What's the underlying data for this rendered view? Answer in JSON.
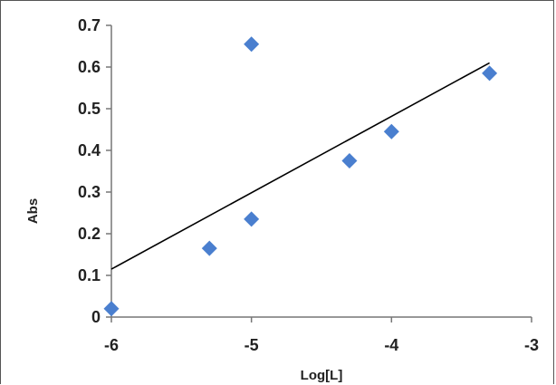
{
  "chart_data": {
    "type": "scatter",
    "title": "",
    "xlabel": "Log[L]",
    "ylabel": "Abs",
    "xlim": [
      -6,
      -3
    ],
    "ylim": [
      0,
      0.7
    ],
    "x_ticks": [
      "-6",
      "-5",
      "-4",
      "-3"
    ],
    "y_ticks": [
      "0",
      "0.1",
      "0.2",
      "0.3",
      "0.4",
      "0.5",
      "0.6",
      "0.7"
    ],
    "grid": false,
    "legend": "none",
    "series": [
      {
        "marker": "diamond",
        "color": "#4a7fcf",
        "points": [
          {
            "x": -6.0,
            "y": 0.02
          },
          {
            "x": -5.3,
            "y": 0.165
          },
          {
            "x": -5.0,
            "y": 0.655
          },
          {
            "x": -5.0,
            "y": 0.235
          },
          {
            "x": -4.3,
            "y": 0.375
          },
          {
            "x": -4.0,
            "y": 0.445
          },
          {
            "x": -3.3,
            "y": 0.585
          }
        ]
      }
    ],
    "trendline": {
      "color": "#000000",
      "from": {
        "x": -6.0,
        "y": 0.115
      },
      "to": {
        "x": -3.3,
        "y": 0.61
      }
    }
  }
}
